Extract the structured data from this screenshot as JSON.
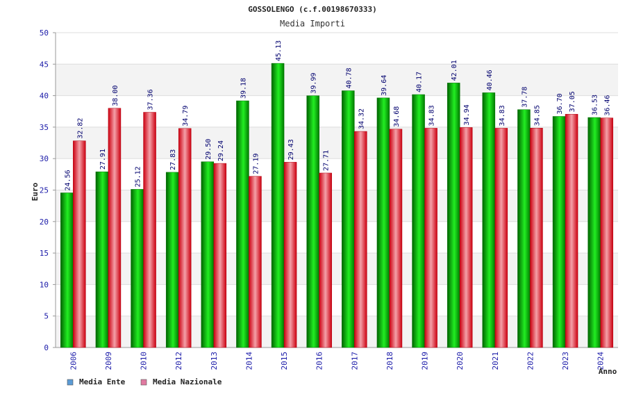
{
  "chart_data": {
    "type": "bar",
    "title": "GOSSOLENGO (c.f.00198670333)",
    "subtitle": "Media Importi",
    "xlabel": "Anno",
    "ylabel": "Euro",
    "ylim": [
      0,
      50
    ],
    "yticks": [
      0,
      5,
      10,
      15,
      20,
      25,
      30,
      35,
      40,
      45,
      50
    ],
    "grid": true,
    "legend_position": "bottom-left",
    "categories": [
      "2006",
      "2009",
      "2010",
      "2012",
      "2013",
      "2014",
      "2015",
      "2016",
      "2017",
      "2018",
      "2019",
      "2020",
      "2021",
      "2022",
      "2023",
      "2024"
    ],
    "series": [
      {
        "name": "Media Ente",
        "color": "#00cc00",
        "legend_color": "#5b9bd5",
        "values": [
          24.56,
          27.91,
          25.12,
          27.83,
          29.5,
          39.18,
          45.13,
          39.99,
          40.78,
          39.64,
          40.17,
          42.01,
          40.46,
          37.78,
          36.7,
          36.53
        ],
        "labels": [
          "24.56",
          "27.91",
          "25.12",
          "27.83",
          "29.50",
          "39.18",
          "45.13",
          "39.99",
          "40.78",
          "39.64",
          "40.17",
          "42.01",
          "40.46",
          "37.78",
          "36.70",
          "36.53"
        ]
      },
      {
        "name": "Media Nazionale",
        "color": "#ee1122",
        "legend_color": "#e07aa0",
        "values": [
          32.82,
          38.0,
          37.36,
          34.79,
          29.24,
          27.19,
          29.43,
          27.71,
          34.32,
          34.68,
          34.83,
          34.94,
          34.83,
          34.85,
          37.05,
          36.46
        ],
        "labels": [
          "32.82",
          "38.00",
          "37.36",
          "34.79",
          "29.24",
          "27.19",
          "29.43",
          "27.71",
          "34.32",
          "34.68",
          "34.83",
          "34.94",
          "34.83",
          "34.85",
          "37.05",
          "36.46"
        ]
      }
    ]
  }
}
